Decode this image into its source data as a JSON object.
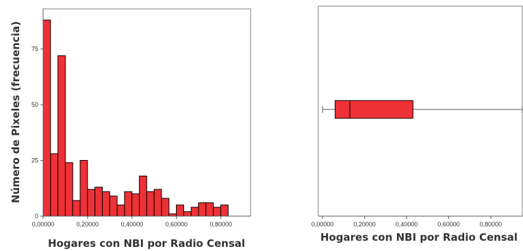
{
  "chart_data": [
    {
      "type": "bar",
      "chart": "histogram",
      "title": "",
      "xlabel": "Hogares con NBI por Radio Censal",
      "ylabel": "Número de Pixeles (frecuencia)",
      "bin_width": 0.0333,
      "x_range": [
        0.0,
        0.9333
      ],
      "ylim": [
        0,
        93
      ],
      "x_ticks": [
        "0,00000",
        "0,20000",
        "0,40000",
        "0,60000",
        "0,80000"
      ],
      "x_tick_values": [
        0.0,
        0.2,
        0.4,
        0.6,
        0.8
      ],
      "y_ticks": [
        "0",
        "25",
        "50",
        "75"
      ],
      "y_tick_values": [
        0,
        25,
        50,
        75
      ],
      "values": [
        88,
        28,
        72,
        24,
        7,
        25,
        12,
        13,
        11,
        9,
        5,
        11,
        10,
        18,
        11,
        12,
        8,
        1,
        5,
        2,
        4,
        6,
        6,
        4,
        5
      ],
      "bar_color": "#ee3136",
      "grid": false
    },
    {
      "type": "boxplot",
      "title": "",
      "xlabel": "Hogares con NBI por Radio Censal",
      "xlim": [
        -0.02,
        0.95
      ],
      "x_ticks": [
        "0,00000",
        "0,20000",
        "0,40000",
        "0,60000",
        "0,80000"
      ],
      "x_tick_values": [
        0.0,
        0.2,
        0.4,
        0.6,
        0.8
      ],
      "min": 0.0,
      "q1": 0.06,
      "median": 0.13,
      "q3": 0.43,
      "max": 0.95,
      "box_color": "#ee3136",
      "grid": false
    }
  ]
}
